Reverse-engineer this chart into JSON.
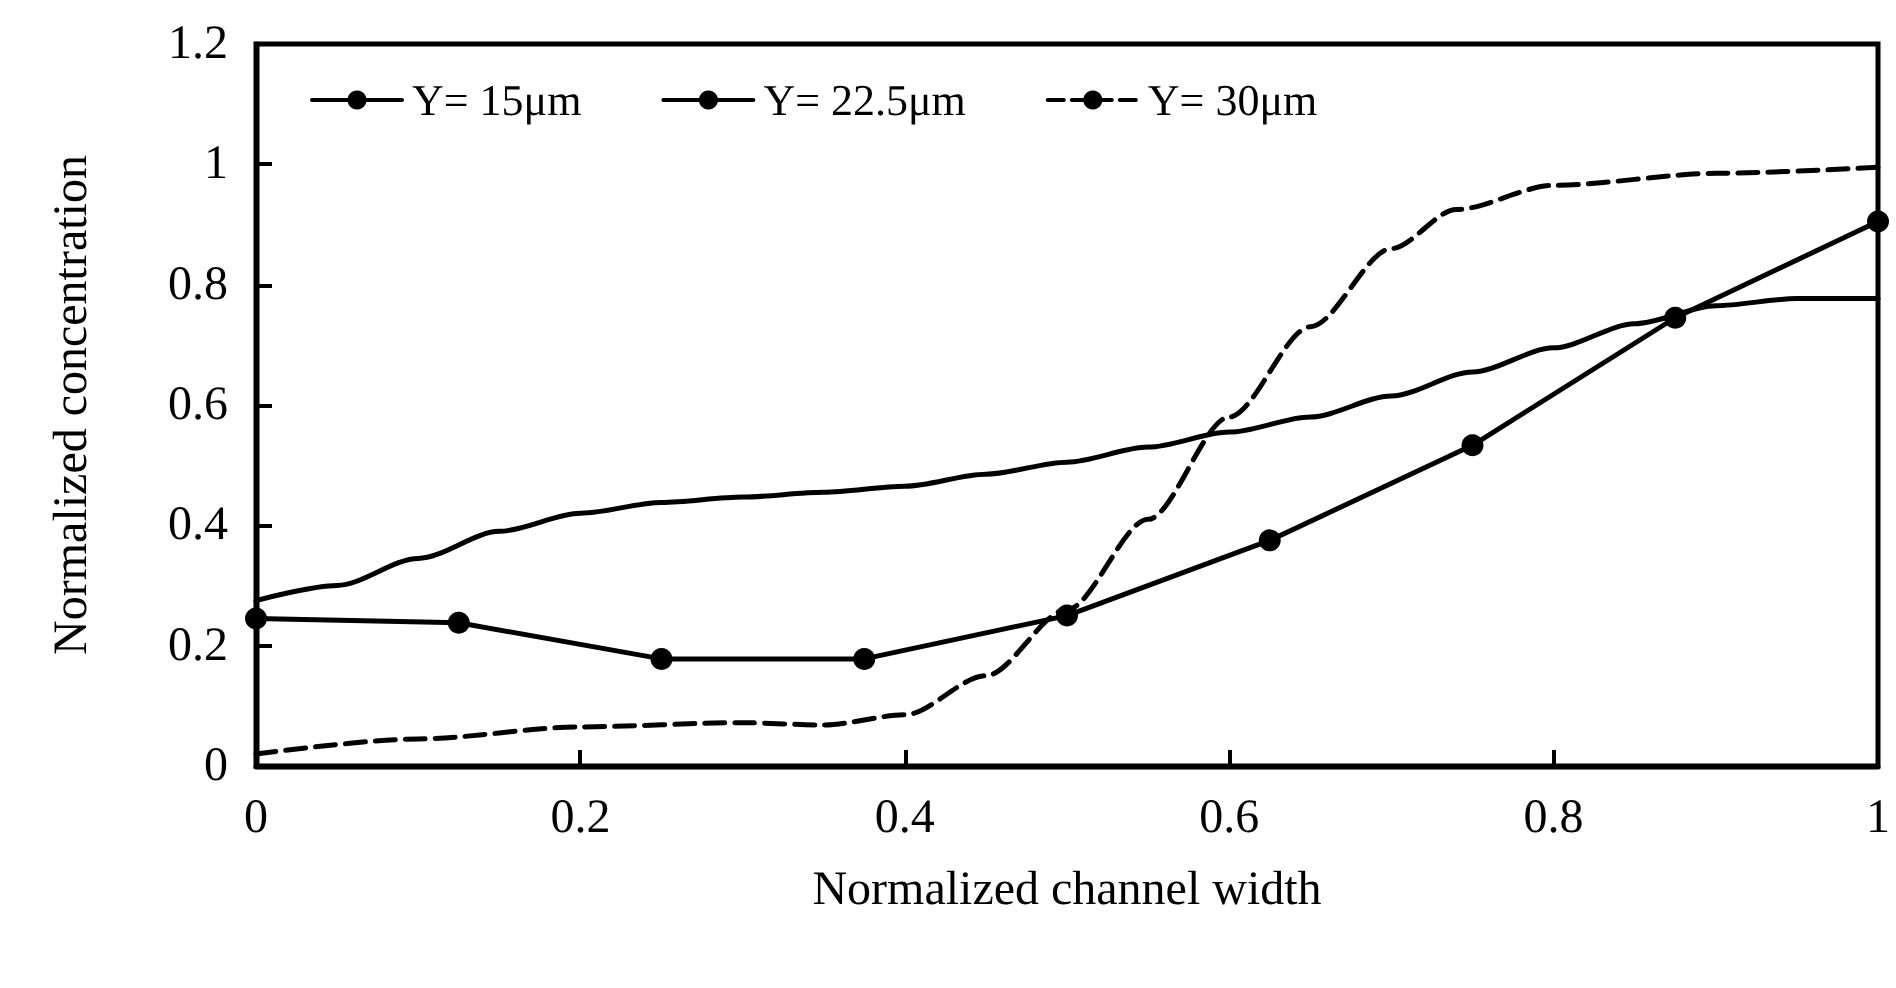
{
  "chart_data": {
    "type": "line",
    "xlabel": "Normalized channel width",
    "ylabel": "Normalized concentration",
    "xlim": [
      0,
      1
    ],
    "xticks": [
      0,
      0.2,
      0.4,
      0.6,
      0.8,
      1
    ],
    "ylim": [
      0,
      1.2
    ],
    "yticks": [
      0,
      0.2,
      0.4,
      0.6,
      0.8,
      1,
      1.2
    ],
    "grid": false,
    "legend": "top",
    "tick_labels": true,
    "series": [
      {
        "name": "Y= 15μm",
        "color": "#000000",
        "marker": "none",
        "line_style": "solid",
        "x": [
          0,
          0.05,
          0.1,
          0.15,
          0.2,
          0.25,
          0.3,
          0.35,
          0.4,
          0.45,
          0.5,
          0.55,
          0.6,
          0.65,
          0.7,
          0.75,
          0.8,
          0.85,
          0.9,
          0.95,
          1
        ],
        "values": [
          0.275,
          0.3,
          0.345,
          0.39,
          0.42,
          0.438,
          0.447,
          0.455,
          0.465,
          0.485,
          0.505,
          0.53,
          0.555,
          0.58,
          0.615,
          0.655,
          0.695,
          0.735,
          0.765,
          0.777,
          0.777
        ]
      },
      {
        "name": "Y= 22.5μm",
        "color": "#000000",
        "marker": "circle",
        "line_style": "solid",
        "x": [
          0,
          0.125,
          0.25,
          0.375,
          0.5,
          0.625,
          0.75,
          0.875,
          1
        ],
        "values": [
          0.245,
          0.238,
          0.178,
          0.178,
          0.25,
          0.375,
          0.533,
          0.745,
          0.905
        ]
      },
      {
        "name": "Y= 30μm",
        "color": "#000000",
        "marker": "none",
        "line_style": "dashed",
        "x": [
          0,
          0.1,
          0.2,
          0.3,
          0.35,
          0.4,
          0.45,
          0.5,
          0.55,
          0.6,
          0.65,
          0.7,
          0.74,
          0.8,
          0.9,
          1
        ],
        "values": [
          0.02,
          0.045,
          0.065,
          0.072,
          0.068,
          0.085,
          0.15,
          0.26,
          0.41,
          0.58,
          0.73,
          0.86,
          0.925,
          0.965,
          0.985,
          0.995
        ]
      }
    ]
  }
}
